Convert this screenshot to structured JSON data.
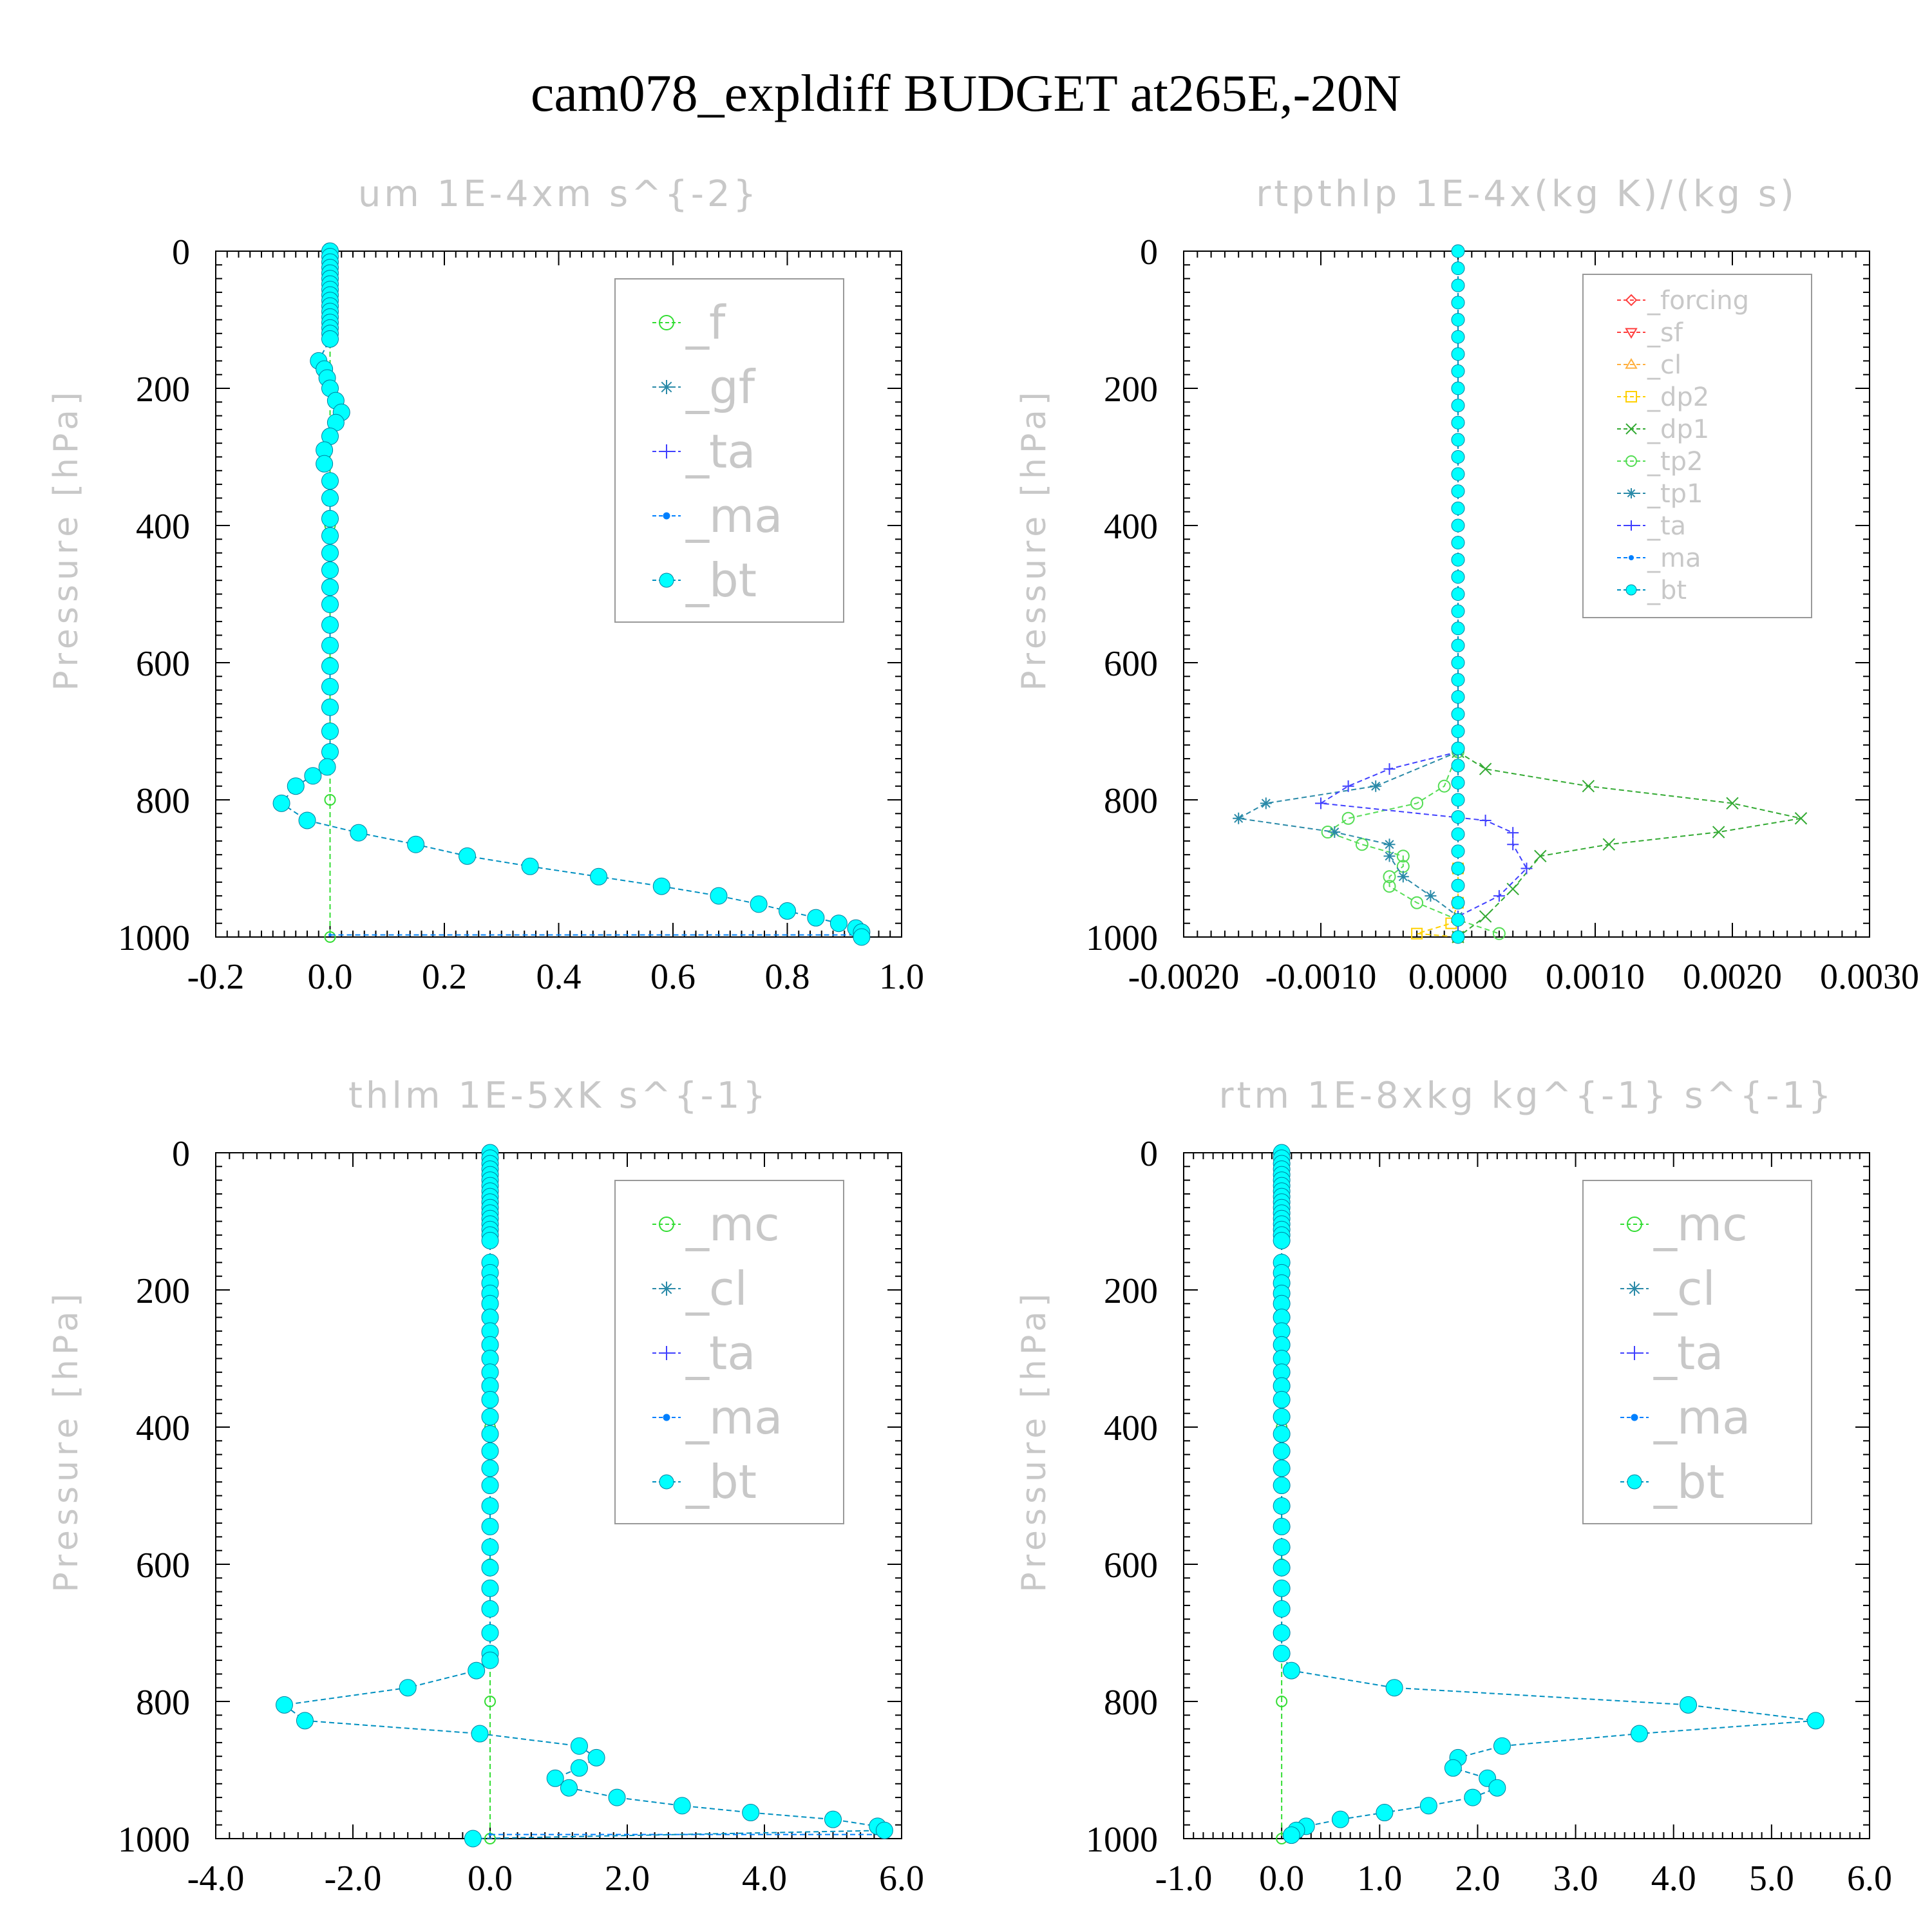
{
  "title": "cam078_expldiff  BUDGET at265E,-20N",
  "chart_data": [
    {
      "type": "line",
      "title": "um  1E-4xm s^{-2}",
      "xlabel": "",
      "ylabel": "Pressure [hPa]",
      "xlim": [
        -0.2,
        1.0
      ],
      "ylim": [
        1000,
        0
      ],
      "x_ticks": [
        "-0.2",
        "0.0",
        "0.2",
        "0.4",
        "0.6",
        "0.8",
        "1.0"
      ],
      "y_ticks": [
        "0",
        "200",
        "400",
        "600",
        "800",
        "1000"
      ],
      "legend_position": "top-right",
      "legend": [
        {
          "label": "_f",
          "color": "#33dd33",
          "marker": "circle"
        },
        {
          "label": "_gf",
          "color": "#2a8aa8",
          "marker": "star"
        },
        {
          "label": "_ta",
          "color": "#4040ff",
          "marker": "plus"
        },
        {
          "label": "_ma",
          "color": "#0080ff",
          "marker": "dot"
        },
        {
          "label": "_bt",
          "color": "#00ffff",
          "marker": "filled-circle"
        }
      ],
      "series": [
        {
          "name": "_f",
          "color": "#33dd33",
          "marker": "circle",
          "size": 8,
          "x": [
            0,
            0,
            0,
            0,
            0,
            0
          ],
          "y": [
            0,
            200,
            400,
            600,
            800,
            1000
          ]
        },
        {
          "name": "_ma",
          "color": "#0080ff",
          "marker": "dot",
          "size": 5,
          "x": [
            0,
            0.93
          ],
          "y": [
            997,
            997
          ]
        },
        {
          "name": "_bt",
          "color": "#00ffff",
          "marker": "filled-circle",
          "size": 13,
          "x": [
            0,
            0,
            0,
            0,
            0,
            0,
            0,
            0,
            0,
            0,
            0,
            0,
            0,
            0,
            0,
            0,
            0,
            -0.02,
            -0.01,
            -0.005,
            0,
            0.01,
            0.02,
            0.01,
            0,
            -0.01,
            -0.01,
            0,
            0,
            0,
            0,
            0,
            0,
            0,
            0,
            0,
            0,
            0,
            0,
            0,
            0,
            0,
            -0.005,
            -0.03,
            -0.06,
            -0.085,
            -0.04,
            0.05,
            0.15,
            0.24,
            0.35,
            0.47,
            0.58,
            0.68,
            0.75,
            0.8,
            0.85,
            0.89,
            0.92,
            0.93,
            0.93
          ],
          "y": [
            0,
            8,
            16,
            24,
            32,
            40,
            48,
            56,
            64,
            72,
            80,
            88,
            96,
            104,
            112,
            120,
            128,
            160,
            172,
            185,
            200,
            218,
            235,
            250,
            270,
            290,
            310,
            335,
            360,
            390,
            415,
            440,
            465,
            490,
            515,
            545,
            575,
            605,
            635,
            665,
            700,
            730,
            752,
            765,
            780,
            805,
            830,
            848,
            865,
            882,
            897,
            912,
            926,
            940,
            952,
            962,
            972,
            980,
            987,
            993,
            1000
          ]
        }
      ]
    },
    {
      "type": "line",
      "title": "rtpthlp  1E-4x(kg K)/(kg s)",
      "xlabel": "",
      "ylabel": "Pressure [hPa]",
      "xlim": [
        -0.002,
        0.003
      ],
      "ylim": [
        1000,
        0
      ],
      "x_ticks": [
        "-0.0020",
        "-0.0010",
        "0.0000",
        "0.0010",
        "0.0020",
        "0.0030"
      ],
      "y_ticks": [
        "0",
        "200",
        "400",
        "600",
        "800",
        "1000"
      ],
      "legend_position": "top-right",
      "legend": [
        {
          "label": "_forcing",
          "color": "#ff4040",
          "marker": "diamond"
        },
        {
          "label": "_sf",
          "color": "#ff4040",
          "marker": "triangle-down"
        },
        {
          "label": "_cl",
          "color": "#ffb040",
          "marker": "triangle-up"
        },
        {
          "label": "_dp2",
          "color": "#ffd000",
          "marker": "square"
        },
        {
          "label": "_dp1",
          "color": "#33aa33",
          "marker": "x"
        },
        {
          "label": "_tp2",
          "color": "#55dd55",
          "marker": "circle"
        },
        {
          "label": "_tp1",
          "color": "#2a8aa8",
          "marker": "star"
        },
        {
          "label": "_ta",
          "color": "#4040ff",
          "marker": "plus"
        },
        {
          "label": "_ma",
          "color": "#0080ff",
          "marker": "dot"
        },
        {
          "label": "_bt",
          "color": "#00ffff",
          "marker": "filled-circle"
        }
      ],
      "series": [
        {
          "name": "_forcing",
          "color": "#ff4040",
          "marker": "diamond",
          "size": 8,
          "x": [
            0,
            0,
            0,
            0,
            0,
            0,
            0,
            0,
            0,
            0,
            0,
            0,
            0,
            0,
            0,
            0,
            0,
            0,
            0,
            0,
            0
          ],
          "y": [
            0,
            50,
            100,
            150,
            200,
            250,
            300,
            350,
            400,
            450,
            500,
            550,
            600,
            650,
            700,
            750,
            800,
            850,
            900,
            950,
            1000
          ]
        },
        {
          "name": "_dp2",
          "color": "#ffd000",
          "marker": "square",
          "size": 8,
          "x": [
            0,
            0,
            -5e-05,
            -0.0003,
            0
          ],
          "y": [
            900,
            950,
            980,
            995,
            1000
          ]
        },
        {
          "name": "_dp1",
          "color": "#33aa33",
          "marker": "x",
          "size": 9,
          "x": [
            0,
            0.0002,
            0.00095,
            0.002,
            0.0025,
            0.0019,
            0.0011,
            0.0006,
            0.0004,
            0.0002,
            0
          ],
          "y": [
            730,
            755,
            780,
            805,
            827,
            847,
            865,
            882,
            930,
            970,
            1000
          ]
        },
        {
          "name": "_tp2",
          "color": "#55dd55",
          "marker": "circle",
          "size": 9,
          "x": [
            0,
            -0.0001,
            -0.0003,
            -0.0008,
            -0.00095,
            -0.0007,
            -0.0004,
            -0.0004,
            -0.0005,
            -0.0005,
            -0.0003,
            0,
            0.0003
          ],
          "y": [
            730,
            780,
            805,
            827,
            847,
            865,
            882,
            897,
            912,
            926,
            950,
            975,
            995
          ]
        },
        {
          "name": "_tp1",
          "color": "#2a8aa8",
          "marker": "star",
          "size": 9,
          "x": [
            0,
            -0.0006,
            -0.0014,
            -0.0016,
            -0.0009,
            -0.0005,
            -0.0005,
            -0.0004,
            -0.0002,
            0,
            0
          ],
          "y": [
            730,
            780,
            805,
            827,
            847,
            865,
            882,
            912,
            940,
            970,
            1000
          ]
        },
        {
          "name": "_ta",
          "color": "#4040ff",
          "marker": "plus",
          "size": 9,
          "x": [
            0,
            -0.0005,
            -0.0008,
            -0.001,
            0.0002,
            0.0004,
            0.0004,
            0.0005,
            0.0003,
            0,
            0
          ],
          "y": [
            730,
            755,
            780,
            805,
            830,
            848,
            865,
            900,
            940,
            970,
            1000
          ]
        },
        {
          "name": "_bt",
          "color": "#00ffff",
          "marker": "filled-circle",
          "size": 10,
          "x": [
            0,
            0,
            0,
            0,
            0,
            0,
            0,
            0,
            0,
            0,
            0,
            0,
            0,
            0,
            0,
            0,
            0,
            0,
            0,
            0,
            0,
            0,
            0,
            0,
            0,
            0,
            0,
            0,
            0,
            0,
            0,
            0,
            0,
            0,
            0,
            0,
            0,
            0,
            0,
            0,
            0
          ],
          "y": [
            0,
            25,
            50,
            75,
            100,
            125,
            150,
            175,
            200,
            225,
            250,
            275,
            300,
            325,
            350,
            375,
            400,
            425,
            450,
            475,
            500,
            525,
            550,
            575,
            600,
            625,
            650,
            675,
            700,
            725,
            750,
            775,
            800,
            825,
            850,
            875,
            900,
            925,
            950,
            975,
            1000
          ]
        }
      ]
    },
    {
      "type": "line",
      "title": "thlm  1E-5xK s^{-1}",
      "xlabel": "",
      "ylabel": "Pressure [hPa]",
      "xlim": [
        -4.0,
        6.0
      ],
      "ylim": [
        1000,
        0
      ],
      "x_ticks": [
        "-4.0",
        "-2.0",
        "0.0",
        "2.0",
        "4.0",
        "6.0"
      ],
      "y_ticks": [
        "0",
        "200",
        "400",
        "600",
        "800",
        "1000"
      ],
      "legend_position": "top-right",
      "legend": [
        {
          "label": "_mc",
          "color": "#33dd33",
          "marker": "circle"
        },
        {
          "label": "_cl",
          "color": "#2a8aa8",
          "marker": "star"
        },
        {
          "label": "_ta",
          "color": "#4040ff",
          "marker": "plus"
        },
        {
          "label": "_ma",
          "color": "#0080ff",
          "marker": "dot"
        },
        {
          "label": "_bt",
          "color": "#00ffff",
          "marker": "filled-circle"
        }
      ],
      "series": [
        {
          "name": "_mc",
          "color": "#33dd33",
          "marker": "circle",
          "size": 8,
          "x": [
            0,
            0,
            0,
            0,
            0,
            0
          ],
          "y": [
            0,
            200,
            400,
            600,
            800,
            1000
          ]
        },
        {
          "name": "_ma",
          "color": "#0080ff",
          "marker": "dot",
          "size": 5,
          "x": [
            0,
            5.7
          ],
          "y": [
            994,
            994
          ]
        },
        {
          "name": "_bt",
          "color": "#00ffff",
          "marker": "filled-circle",
          "size": 13,
          "x": [
            0,
            0,
            0,
            0,
            0,
            0,
            0,
            0,
            0,
            0,
            0,
            0,
            0,
            0,
            0,
            0,
            0,
            0,
            0,
            0,
            0,
            0,
            0,
            0,
            0,
            0,
            0,
            0,
            0,
            0,
            0,
            0,
            0,
            0,
            0,
            0,
            0,
            0,
            0,
            0,
            0,
            0,
            0,
            -0.2,
            -1.2,
            -3.0,
            -2.7,
            -0.15,
            1.3,
            1.55,
            1.3,
            0.95,
            1.15,
            1.85,
            2.8,
            3.8,
            5.0,
            5.65,
            5.75,
            -0.25
          ],
          "y": [
            0,
            8,
            16,
            24,
            32,
            40,
            48,
            56,
            64,
            72,
            80,
            88,
            96,
            104,
            112,
            120,
            128,
            160,
            175,
            190,
            205,
            220,
            240,
            260,
            280,
            300,
            320,
            340,
            360,
            385,
            410,
            435,
            460,
            485,
            515,
            545,
            575,
            605,
            635,
            665,
            700,
            730,
            740,
            755,
            780,
            805,
            828,
            847,
            865,
            882,
            897,
            912,
            926,
            940,
            952,
            962,
            972,
            982,
            988,
            1000
          ]
        }
      ]
    },
    {
      "type": "line",
      "title": "rtm  1E-8xkg kg^{-1} s^{-1}",
      "xlabel": "",
      "ylabel": "Pressure [hPa]",
      "xlim": [
        -1.0,
        6.0
      ],
      "ylim": [
        1000,
        0
      ],
      "x_ticks": [
        "-1.0",
        "0.0",
        "1.0",
        "2.0",
        "3.0",
        "4.0",
        "5.0",
        "6.0"
      ],
      "y_ticks": [
        "0",
        "200",
        "400",
        "600",
        "800",
        "1000"
      ],
      "legend_position": "top-right",
      "legend": [
        {
          "label": "_mc",
          "color": "#33dd33",
          "marker": "circle"
        },
        {
          "label": "_cl",
          "color": "#2a8aa8",
          "marker": "star"
        },
        {
          "label": "_ta",
          "color": "#4040ff",
          "marker": "plus"
        },
        {
          "label": "_ma",
          "color": "#0080ff",
          "marker": "dot"
        },
        {
          "label": "_bt",
          "color": "#00ffff",
          "marker": "filled-circle"
        }
      ],
      "series": [
        {
          "name": "_mc",
          "color": "#33dd33",
          "marker": "circle",
          "size": 8,
          "x": [
            0,
            0,
            0,
            0,
            0,
            0
          ],
          "y": [
            0,
            200,
            400,
            600,
            800,
            1000
          ]
        },
        {
          "name": "_bt",
          "color": "#00ffff",
          "marker": "filled-circle",
          "size": 13,
          "x": [
            0,
            0,
            0,
            0,
            0,
            0,
            0,
            0,
            0,
            0,
            0,
            0,
            0,
            0,
            0,
            0,
            0,
            0,
            0,
            0,
            0,
            0,
            0,
            0,
            0,
            0,
            0,
            0,
            0,
            0,
            0,
            0,
            0,
            0,
            0,
            0,
            0,
            0,
            0,
            0,
            0,
            0,
            0.1,
            1.15,
            4.15,
            5.45,
            3.65,
            2.25,
            1.8,
            1.75,
            2.1,
            2.2,
            1.95,
            1.5,
            1.05,
            0.6,
            0.25,
            0.15,
            0.1
          ],
          "y": [
            0,
            8,
            16,
            24,
            32,
            40,
            48,
            56,
            64,
            72,
            80,
            88,
            96,
            104,
            112,
            120,
            128,
            160,
            175,
            190,
            205,
            220,
            240,
            260,
            280,
            300,
            320,
            340,
            360,
            385,
            410,
            435,
            460,
            485,
            515,
            545,
            575,
            605,
            635,
            665,
            700,
            730,
            755,
            780,
            805,
            828,
            847,
            865,
            882,
            897,
            912,
            926,
            940,
            952,
            962,
            972,
            982,
            988,
            995
          ]
        }
      ]
    }
  ]
}
